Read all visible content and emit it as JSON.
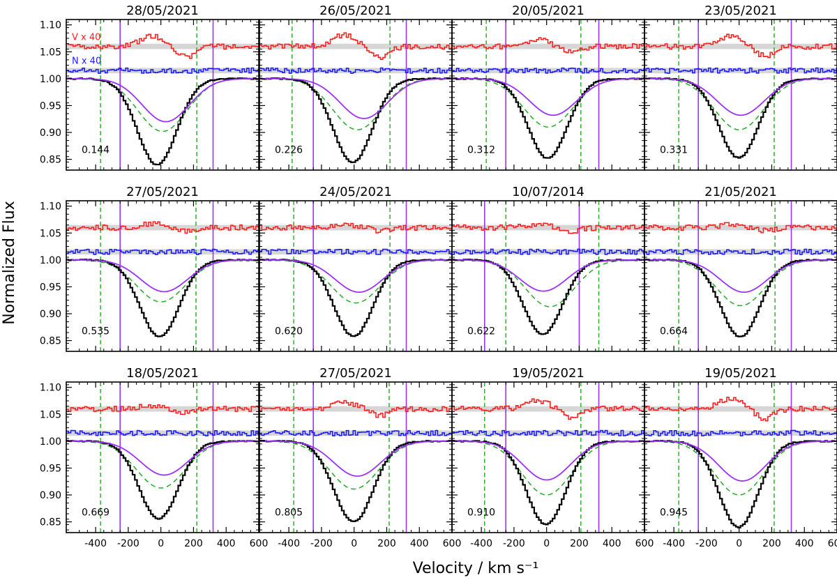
{
  "figure": {
    "ylabel": "Normalized Flux",
    "xlabel": "Velocity / km s⁻¹",
    "series_labels": {
      "V": "V x 40",
      "N": "N x 40"
    }
  },
  "colors": {
    "V": "#ff2020",
    "N": "#1c1cff",
    "I": "#000000",
    "model": "#9b30ff",
    "dashed": "#22aa22",
    "band": "#d6d6d6"
  },
  "chart_data": {
    "type": "line",
    "xlim": [
      -580,
      600
    ],
    "ylim": [
      0.83,
      1.11
    ],
    "xticks": [
      -400,
      -200,
      0,
      200,
      400,
      600
    ],
    "xtick_labels": [
      "-400",
      "-200",
      "0",
      "200",
      "400",
      "600"
    ],
    "yticks": [
      0.85,
      0.9,
      0.95,
      1.0,
      1.05,
      1.1
    ],
    "ytick_labels": [
      "0.85",
      "0.90",
      "0.95",
      "1.00",
      "1.05",
      "1.10"
    ],
    "V_offset": 1.06,
    "N_offset": 1.015,
    "panels": [
      {
        "date": "28/05/2021",
        "phase": "0.144",
        "I_min": 0.84,
        "I_center": -30,
        "model_min": 0.92,
        "model_center": 30,
        "dashed_min": 0.902,
        "dashed_center": 10,
        "dashed_lines": [
          -370,
          220
        ],
        "solid_lines": [
          -250,
          320
        ],
        "V_amp": 0.02
      },
      {
        "date": "26/05/2021",
        "phase": "0.226",
        "I_min": 0.845,
        "I_center": -15,
        "model_min": 0.926,
        "model_center": 60,
        "dashed_min": 0.905,
        "dashed_center": 20,
        "dashed_lines": [
          -380,
          220
        ],
        "solid_lines": [
          -250,
          320
        ],
        "V_amp": 0.022
      },
      {
        "date": "20/05/2021",
        "phase": "0.312",
        "I_min": 0.852,
        "I_center": 0,
        "model_min": 0.932,
        "model_center": 40,
        "dashed_min": 0.91,
        "dashed_center": 10,
        "dashed_lines": [
          -370,
          210
        ],
        "solid_lines": [
          -250,
          320
        ],
        "V_amp": 0.012
      },
      {
        "date": "23/05/2021",
        "phase": "0.331",
        "I_min": 0.853,
        "I_center": -10,
        "model_min": 0.932,
        "model_center": 10,
        "dashed_min": 0.905,
        "dashed_center": 0,
        "dashed_lines": [
          -370,
          215
        ],
        "solid_lines": [
          -250,
          320
        ],
        "V_amp": 0.018
      },
      {
        "date": "27/05/2021",
        "phase": "0.535",
        "I_min": 0.857,
        "I_center": -15,
        "model_min": 0.941,
        "model_center": 20,
        "dashed_min": 0.922,
        "dashed_center": 0,
        "dashed_lines": [
          -370,
          215
        ],
        "solid_lines": [
          -250,
          320
        ],
        "V_amp": 0.008
      },
      {
        "date": "24/05/2021",
        "phase": "0.620",
        "I_min": 0.858,
        "I_center": -10,
        "model_min": 0.94,
        "model_center": 30,
        "dashed_min": 0.92,
        "dashed_center": 10,
        "dashed_lines": [
          -370,
          220
        ],
        "solid_lines": [
          -250,
          320
        ],
        "V_amp": 0.005
      },
      {
        "date": "10/07/2014",
        "phase": "0.622",
        "I_min": 0.862,
        "I_center": -30,
        "model_min": 0.942,
        "model_center": -20,
        "dashed_min": 0.913,
        "dashed_center": 20,
        "dashed_lines": [
          -250,
          320
        ],
        "solid_lines": [
          -380,
          200
        ],
        "V_amp": 0.006
      },
      {
        "date": "21/05/2021",
        "phase": "0.664",
        "I_min": 0.857,
        "I_center": 0,
        "model_min": 0.94,
        "model_center": 30,
        "dashed_min": 0.915,
        "dashed_center": 10,
        "dashed_lines": [
          -370,
          220
        ],
        "solid_lines": [
          -250,
          320
        ],
        "V_amp": 0.005
      },
      {
        "date": "18/05/2021",
        "phase": "0.669",
        "I_min": 0.856,
        "I_center": -20,
        "model_min": 0.937,
        "model_center": 20,
        "dashed_min": 0.913,
        "dashed_center": 0,
        "dashed_lines": [
          -370,
          220
        ],
        "solid_lines": [
          -250,
          320
        ],
        "V_amp": 0.006
      },
      {
        "date": "27/05/2021",
        "phase": "0.805",
        "I_min": 0.85,
        "I_center": -10,
        "model_min": 0.935,
        "model_center": 20,
        "dashed_min": 0.911,
        "dashed_center": 0,
        "dashed_lines": [
          -370,
          215
        ],
        "solid_lines": [
          -250,
          320
        ],
        "V_amp": 0.012
      },
      {
        "date": "19/05/2021",
        "phase": "0.910",
        "I_min": 0.845,
        "I_center": -10,
        "model_min": 0.928,
        "model_center": 0,
        "dashed_min": 0.9,
        "dashed_center": 0,
        "dashed_lines": [
          -380,
          210
        ],
        "solid_lines": [
          -250,
          320
        ],
        "V_amp": 0.016
      },
      {
        "date": "19/05/2021",
        "phase": "0.945",
        "I_min": 0.84,
        "I_center": -10,
        "model_min": 0.926,
        "model_center": 20,
        "dashed_min": 0.9,
        "dashed_center": 0,
        "dashed_lines": [
          -370,
          215
        ],
        "solid_lines": [
          -250,
          320
        ],
        "V_amp": 0.018
      }
    ]
  }
}
